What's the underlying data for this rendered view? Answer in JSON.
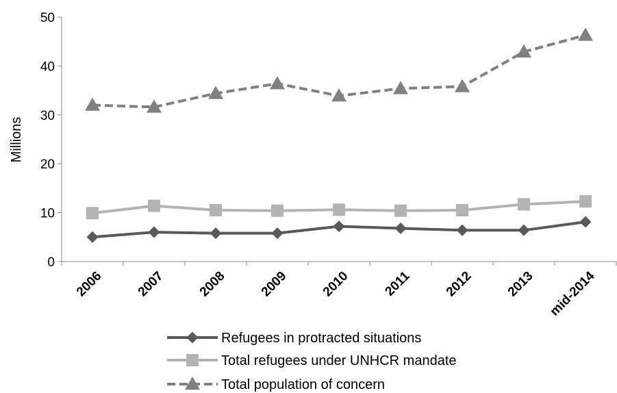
{
  "chart_data": {
    "type": "line",
    "title": "",
    "xlabel": "",
    "ylabel": "Millions",
    "ylim": [
      0,
      50
    ],
    "yticks": [
      0,
      10,
      20,
      30,
      40,
      50
    ],
    "grid": false,
    "legend_position": "bottom",
    "categories": [
      "2006",
      "2007",
      "2008",
      "2009",
      "2010",
      "2011",
      "2012",
      "2013",
      "mid-2014"
    ],
    "series": [
      {
        "name": "Refugees in protracted situations",
        "values": [
          5.0,
          6.0,
          5.8,
          5.8,
          7.2,
          6.8,
          6.4,
          6.4,
          8.1
        ],
        "color": "#595959",
        "marker": "diamond",
        "line_style": "solid"
      },
      {
        "name": "Total refugees under UNHCR mandate",
        "values": [
          9.9,
          11.4,
          10.5,
          10.4,
          10.6,
          10.4,
          10.5,
          11.7,
          12.3
        ],
        "color": "#b3b3b3",
        "marker": "square",
        "line_style": "solid"
      },
      {
        "name": "Total population of concern",
        "values": [
          32.0,
          31.6,
          34.4,
          36.4,
          33.9,
          35.4,
          35.8,
          42.9,
          46.3
        ],
        "color": "#808080",
        "marker": "triangle",
        "line_style": "dashed"
      }
    ]
  }
}
